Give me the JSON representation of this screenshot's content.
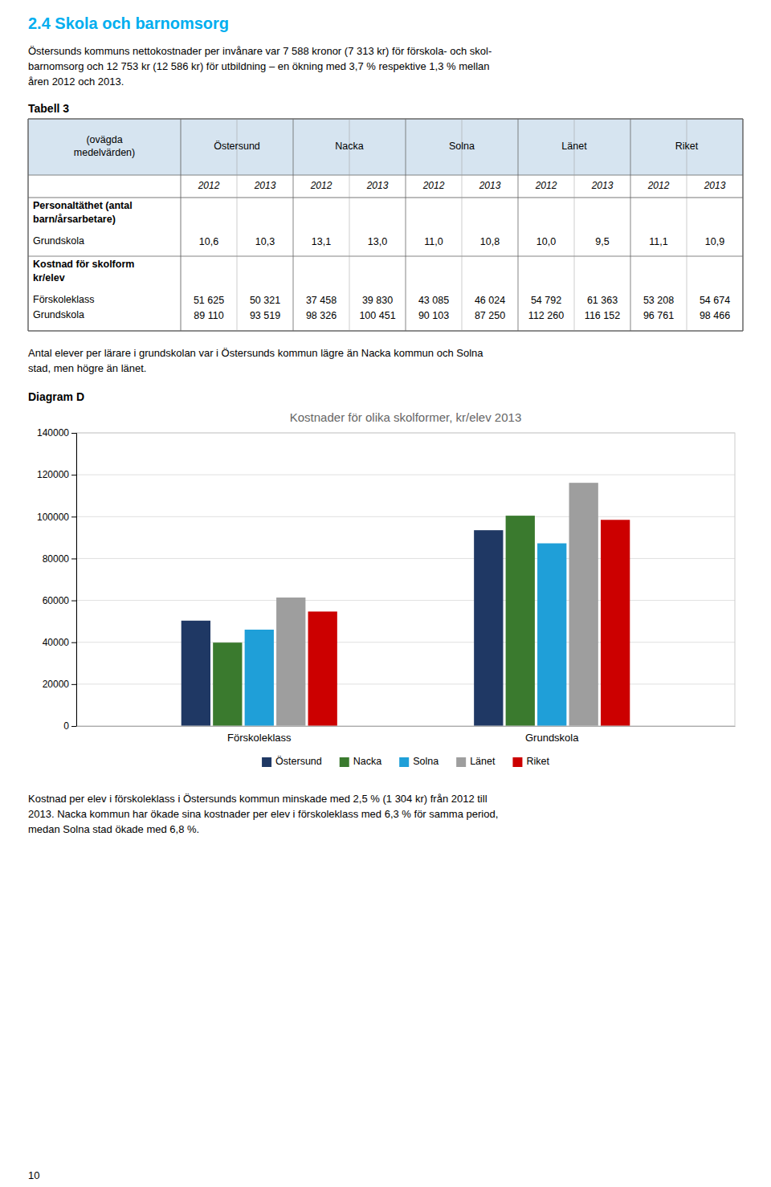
{
  "page": {
    "title": "2.4 Skola och barnomsorg",
    "title_color": "#00AEEF",
    "intro": [
      "Östersunds kommuns nettokostnader per invånare var 7 588 kronor (7 313 kr) för förskola- och skol-",
      "barnomsorg och 12 753 kr (12 586 kr) för utbildning – en ökning med 3,7 % respektive 1,3 % mellan",
      "åren 2012 och 2013."
    ],
    "table_title": "Tabell 3",
    "table": {
      "header_color": "#D6E4F0",
      "header_left": [
        "(ovägda",
        "medelvärden)"
      ],
      "columns": [
        "Östersund",
        "Nacka",
        "Solna",
        "Länet",
        "Riket"
      ],
      "years": [
        "2012",
        "2013",
        "2012",
        "2013",
        "2012",
        "2013",
        "2012",
        "2013",
        "2012",
        "2013"
      ],
      "rows": [
        {
          "label": [
            "Personaltäthet (antal",
            "barn/årsarbetare)"
          ],
          "sublabels": [
            "Grundskola"
          ],
          "values": [
            [
              "10,6",
              "10,3",
              "13,1",
              "13,0",
              "11,0",
              "10,8",
              "10,0",
              "9,5",
              "11,1",
              "10,9"
            ]
          ]
        },
        {
          "label": [
            "Kostnad för skolform",
            "kr/elev"
          ],
          "sublabels": [
            "Förskoleklass",
            "Grundskola"
          ],
          "values": [
            [
              "51 625",
              "50 321",
              "37 458",
              "39 830",
              "43 085",
              "46 024",
              "54 792",
              "61 363",
              "53 208",
              "54 674"
            ],
            [
              "89 110",
              "93 519",
              "98 326",
              "100 451",
              "90 103",
              "87 250",
              "112 260",
              "116 152",
              "96 761",
              "98 466"
            ]
          ]
        }
      ]
    },
    "middle_text": [
      "Antal elever per lärare i grundskolan var i Östersunds kommun lägre än Nacka kommun och Solna",
      "stad, men högre än länet."
    ],
    "diagram_label": "Diagram D",
    "bottom_text": [
      "Kostnad per elev i förskoleklass i Östersunds kommun minskade med 2,5 % (1 304 kr) från 2012 till",
      "2013. Nacka kommun har ökade sina kostnader per elev i förskoleklass med 6,3 % för samma period,",
      "medan Solna stad ökade med 6,8 %."
    ],
    "page_number": "10"
  },
  "chart_data": {
    "type": "bar",
    "title": "Kostnader för olika skolformer, kr/elev 2013",
    "categories": [
      "Förskoleklass",
      "Grundskola"
    ],
    "series": [
      {
        "name": "Östersund",
        "color": "#1F3864",
        "values": [
          50321,
          93519
        ]
      },
      {
        "name": "Nacka",
        "color": "#3A7A2E",
        "values": [
          39830,
          100451
        ]
      },
      {
        "name": "Solna",
        "color": "#1F9FD8",
        "values": [
          46024,
          87250
        ]
      },
      {
        "name": "Länet",
        "color": "#9E9E9E",
        "values": [
          61363,
          116152
        ]
      },
      {
        "name": "Riket",
        "color": "#CC0000",
        "values": [
          54674,
          98466
        ]
      }
    ],
    "ylim": [
      0,
      140000
    ],
    "yticks": [
      0,
      20000,
      40000,
      60000,
      80000,
      100000,
      120000,
      140000
    ],
    "grid": true,
    "legend": "bottom"
  }
}
